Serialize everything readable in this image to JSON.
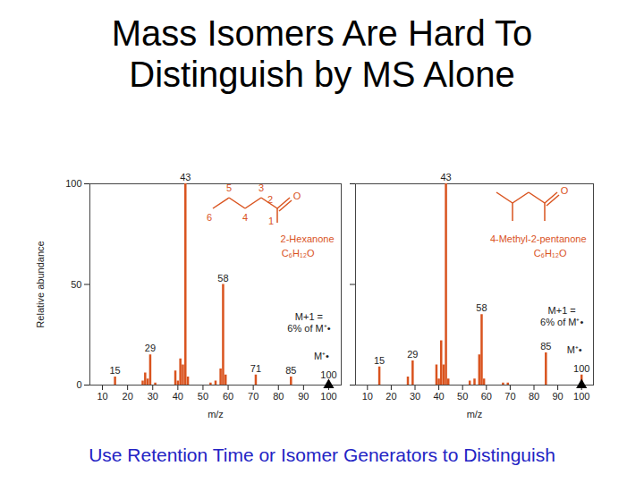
{
  "title": "Mass Isomers Are Hard To Distinguish by MS Alone",
  "caption": "Use Retention Time or Isomer Generators to Distinguish",
  "chart_data": [
    {
      "type": "bar",
      "title": "2-Hexanone",
      "formula": "C₆H₁₂O",
      "structure_labels": [
        "6",
        "5",
        "4",
        "3",
        "2",
        "1",
        "O"
      ],
      "x_label": "m/z",
      "y_label": "Relative abundance",
      "color": "#d9531e",
      "x": [
        15,
        26,
        27,
        28,
        29,
        31,
        39,
        40,
        41,
        42,
        43,
        44,
        53,
        55,
        57,
        58,
        59,
        71,
        85,
        100
      ],
      "values": [
        4,
        2,
        6,
        3,
        15,
        1,
        7,
        2,
        13,
        10,
        100,
        4,
        1,
        2,
        8,
        50,
        5,
        5,
        4,
        2
      ],
      "peak_labels": [
        15,
        29,
        43,
        58,
        71,
        85,
        100
      ],
      "molecular_ion": 100,
      "annotations": [
        "M+1 =",
        "6% of M⁺•",
        "M⁺•"
      ],
      "xlim": [
        5,
        105
      ],
      "xticks": [
        10,
        20,
        30,
        40,
        50,
        60,
        70,
        80,
        90,
        100
      ],
      "ylim": [
        0,
        100
      ],
      "yticks": [
        0,
        50,
        100
      ],
      "tick_labels": true
    },
    {
      "type": "bar",
      "title": "4-Methyl-2-pentanone",
      "formula": "C₆H₁₂O",
      "structure_labels": [
        "O"
      ],
      "x_label": "m/z",
      "color": "#d9531e",
      "x": [
        15,
        27,
        29,
        39,
        40,
        41,
        42,
        43,
        44,
        53,
        55,
        57,
        58,
        59,
        67,
        69,
        85,
        100
      ],
      "values": [
        9,
        4,
        12,
        10,
        3,
        22,
        10,
        100,
        3,
        2,
        3,
        15,
        35,
        3,
        1,
        1,
        16,
        5
      ],
      "peak_labels": [
        15,
        29,
        43,
        58,
        85,
        100
      ],
      "molecular_ion": 100,
      "annotations": [
        "M+1 =",
        "6% of M⁺•",
        "M⁺•"
      ],
      "xlim": [
        5,
        105
      ],
      "xticks": [
        10,
        20,
        30,
        40,
        50,
        60,
        70,
        80,
        90,
        100
      ],
      "ylim": [
        0,
        100
      ],
      "yticks": [
        0,
        50,
        100
      ],
      "tick_labels": "x"
    }
  ]
}
